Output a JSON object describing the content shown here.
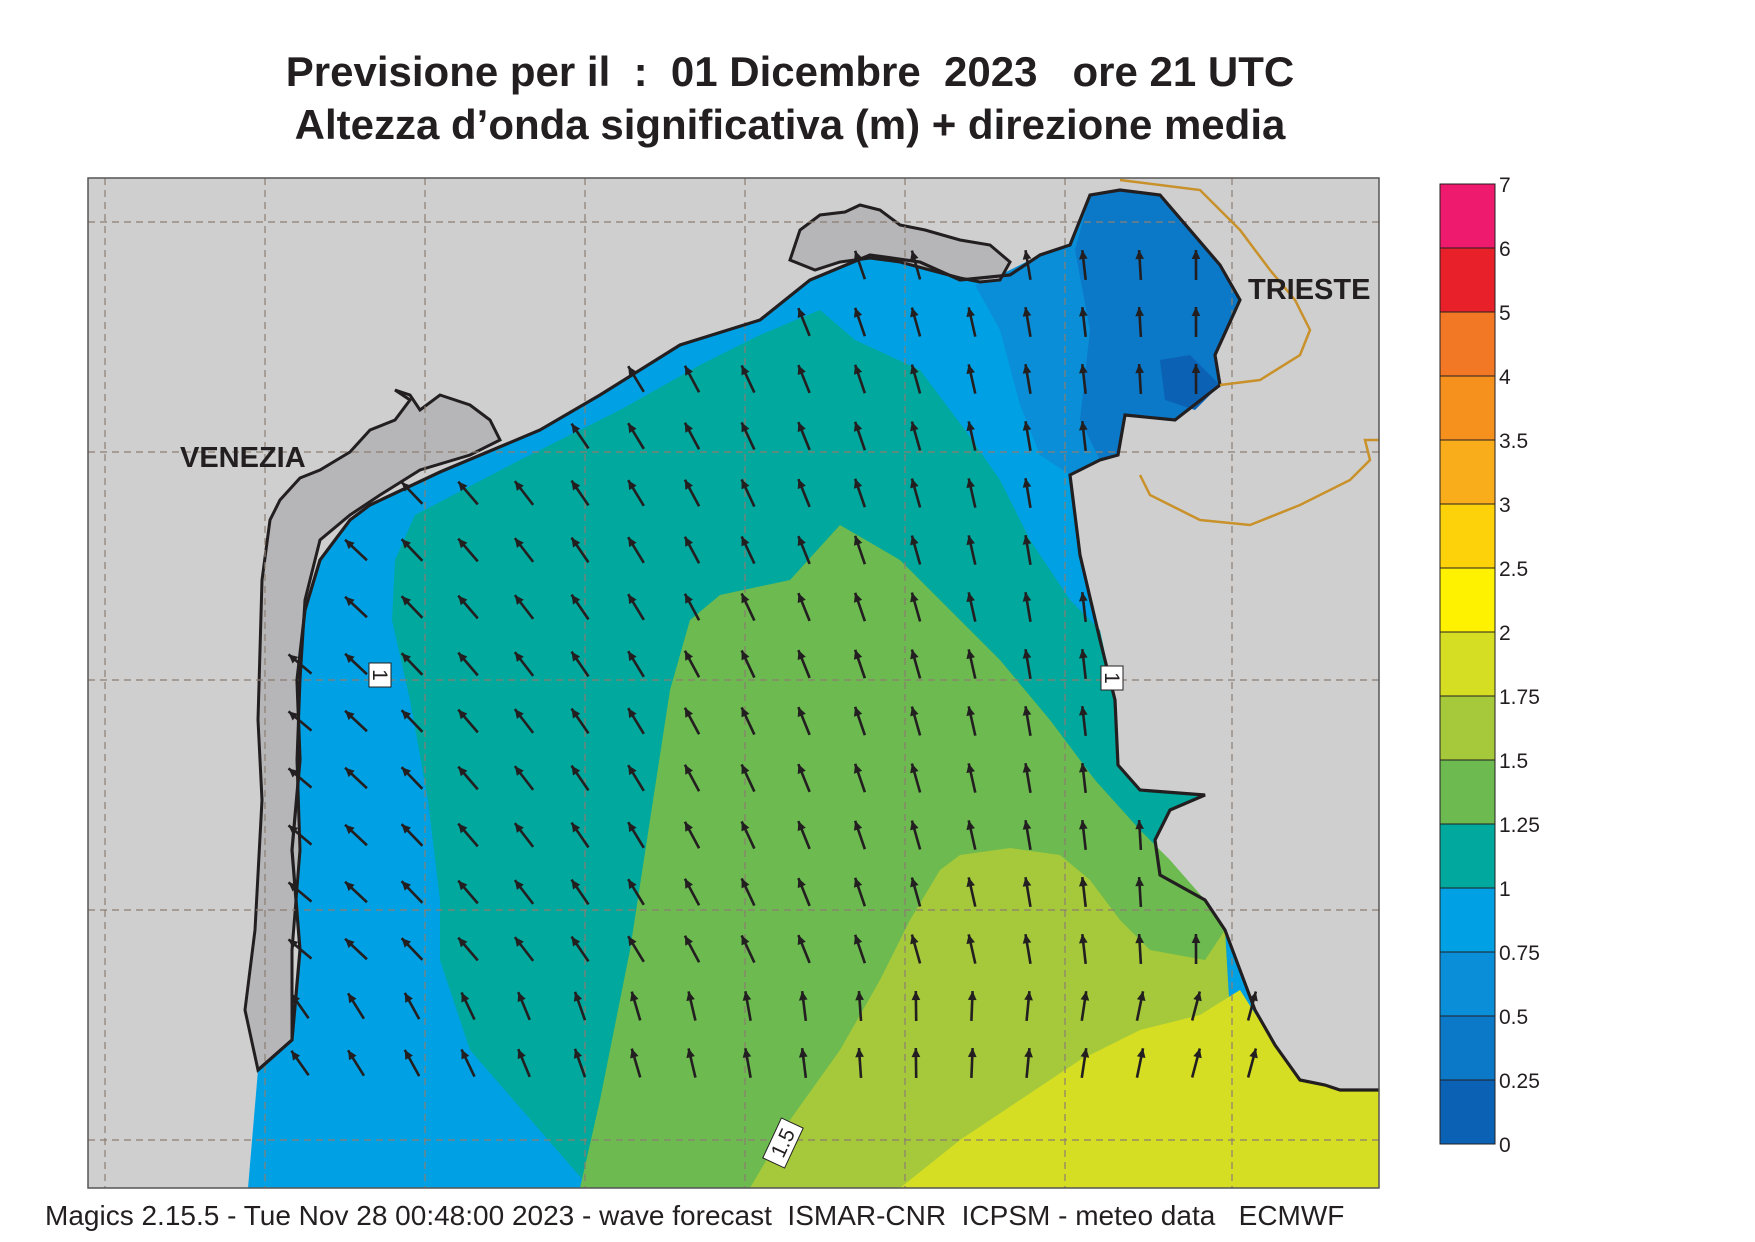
{
  "title": {
    "line1": "Previsione per il  :  01 Dicembre  2023   ore 21 UTC",
    "line2": "Altezza d’onda significativa (m) + direzione media"
  },
  "cities": {
    "venezia": "VENEZIA",
    "trieste": "TRIESTE"
  },
  "contour_labels": [
    "1",
    "1",
    "1.5"
  ],
  "legend": {
    "ticks": [
      "7",
      "6",
      "5",
      "4",
      "3.5",
      "3",
      "2.5",
      "2",
      "1.75",
      "1.5",
      "1.25",
      "1",
      "0.75",
      "0.5",
      "0.25",
      "0"
    ],
    "colors": [
      "#ee1a6e",
      "#e8202a",
      "#f37826",
      "#f6911e",
      "#f9ad1a",
      "#fdd20a",
      "#fff200",
      "#d6de23",
      "#a5c93a",
      "#6cba50",
      "#00a89d",
      "#00a1e4",
      "#0a8ed8",
      "#0b78c8",
      "#0b62b5"
    ]
  },
  "colors": {
    "land": "#cfcfd0",
    "coast": "#231f20",
    "border": "#c9912a",
    "grid": "#8c7e72"
  },
  "footer": "Magics 2.15.5 - Tue Nov 28 00:48:00 2023 - wave forecast  ISMAR-CNR  ICPSM - meteo data   ECMWF"
}
